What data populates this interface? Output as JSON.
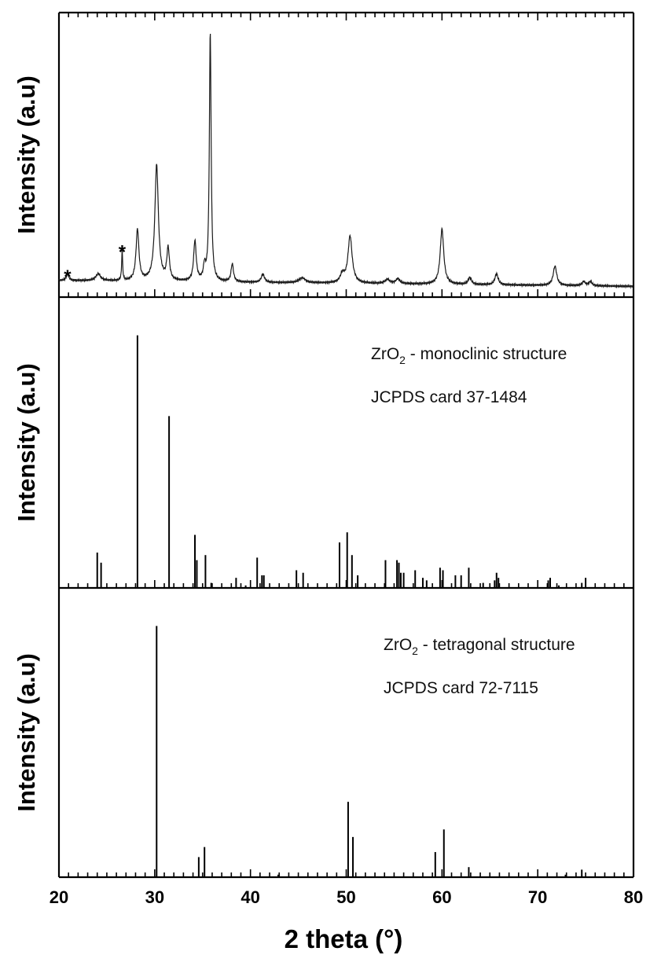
{
  "chart_data": {
    "type": "line",
    "x_axis": {
      "label": "2 theta (°)",
      "range": [
        20,
        80
      ],
      "ticks": [
        20,
        30,
        40,
        50,
        60,
        70,
        80
      ],
      "minor_step": 1
    },
    "panels": [
      {
        "ylabel": "Intensity (a.u)",
        "kind": "pattern",
        "ylim": [
          0,
          100
        ],
        "baseline": 6,
        "peaks": [
          {
            "x": 20.9,
            "h": 2.5,
            "w": 0.15
          },
          {
            "x": 24.1,
            "h": 2.5,
            "w": 0.3
          },
          {
            "x": 26.6,
            "h": 11,
            "w": 0.06
          },
          {
            "x": 28.2,
            "h": 18.5,
            "w": 0.18
          },
          {
            "x": 30.2,
            "h": 42,
            "w": 0.22
          },
          {
            "x": 31.4,
            "h": 11.5,
            "w": 0.16
          },
          {
            "x": 34.2,
            "h": 14.5,
            "w": 0.16
          },
          {
            "x": 35.2,
            "h": 5,
            "w": 0.14
          },
          {
            "x": 35.8,
            "h": 90,
            "w": 0.11
          },
          {
            "x": 38.1,
            "h": 6.5,
            "w": 0.15
          },
          {
            "x": 41.3,
            "h": 3,
            "w": 0.2
          },
          {
            "x": 45.4,
            "h": 1.8,
            "w": 0.4
          },
          {
            "x": 49.6,
            "h": 3,
            "w": 0.25
          },
          {
            "x": 50.4,
            "h": 17,
            "w": 0.26
          },
          {
            "x": 54.3,
            "h": 1.5,
            "w": 0.3
          },
          {
            "x": 55.4,
            "h": 1.8,
            "w": 0.25
          },
          {
            "x": 60.0,
            "h": 20,
            "w": 0.22
          },
          {
            "x": 62.9,
            "h": 2.5,
            "w": 0.2
          },
          {
            "x": 65.7,
            "h": 4,
            "w": 0.2
          },
          {
            "x": 71.8,
            "h": 7,
            "w": 0.22
          },
          {
            "x": 74.8,
            "h": 1.5,
            "w": 0.2
          },
          {
            "x": 75.5,
            "h": 1.5,
            "w": 0.2
          }
        ],
        "markers": [
          {
            "x": 20.9,
            "y": 8.5,
            "label": "*"
          },
          {
            "x": 26.6,
            "y": 17.5,
            "label": "*"
          }
        ]
      },
      {
        "ylabel": "Intensity (a.u)",
        "kind": "sticks",
        "ylim": [
          0,
          112
        ],
        "annotation": {
          "name_main": "ZrO",
          "name_sub": "2",
          "name_rest": " - monoclinic structure",
          "card": "JCPDS card 37-1484"
        },
        "x": [
          24.0,
          24.4,
          28.2,
          31.5,
          34.2,
          34.4,
          35.3,
          35.9,
          38.5,
          39.5,
          40.7,
          41.2,
          41.4,
          44.8,
          45.5,
          49.3,
          50.1,
          50.6,
          51.2,
          54.1,
          55.3,
          55.5,
          55.7,
          56.0,
          57.2,
          58.0,
          58.4,
          59.8,
          60.1,
          61.4,
          62.0,
          62.8,
          64.3,
          65.5,
          65.7,
          65.9,
          71.1,
          71.3,
          72.2,
          74.6,
          75.0
        ],
        "values": [
          14,
          10,
          100,
          68,
          21,
          11,
          13,
          2,
          4,
          1,
          12,
          5,
          5,
          7,
          6,
          18,
          22,
          13,
          5,
          11,
          11,
          10,
          6,
          6,
          7,
          4,
          3,
          8,
          7,
          5,
          5,
          8,
          2,
          3,
          6,
          4,
          3,
          4,
          1,
          2,
          4
        ]
      },
      {
        "ylabel": "Intensity (a.u)",
        "kind": "sticks",
        "ylim": [
          0,
          112
        ],
        "annotation": {
          "name_main": "ZrO",
          "name_sub": "2",
          "name_rest": " - tetragonal structure",
          "card": "JCPDS card 72-7115"
        },
        "x": [
          30.2,
          34.6,
          35.2,
          42.9,
          50.2,
          50.7,
          59.3,
          60.2,
          62.8,
          72.9,
          74.6
        ],
        "values": [
          100,
          8,
          12,
          1,
          30,
          16,
          10,
          19,
          4,
          1,
          3
        ]
      }
    ]
  }
}
